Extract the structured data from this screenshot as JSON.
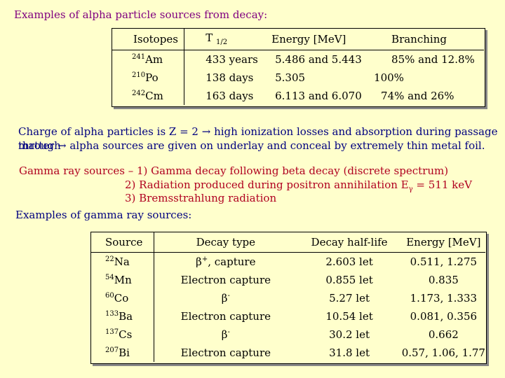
{
  "title": "Examples of alpha particle sources from decay:",
  "alpha_table": {
    "headers": [
      "Isotopes",
      "T",
      "1/2",
      "Energy [MeV]",
      "Branching"
    ],
    "rows": [
      {
        "mass": "241",
        "el": "Am",
        "t": "433 years",
        "e": "5.486 and 5.443",
        "b": "85% and 12.8%"
      },
      {
        "mass": "210",
        "el": "Po",
        "t": "138 days",
        "e": "5.305",
        "b": "100%"
      },
      {
        "mass": "242",
        "el": "Cm",
        "t": "163 days",
        "e": "6.113  and 6.070",
        "b": "74% and 26%"
      }
    ]
  },
  "charge_text_1": "Charge of alpha particles is Z = 2 → high ionization losses and absorption during passage through",
  "charge_text_2": "matter → alpha sources are given on  underlay and conceal by extremely thin metal foil.",
  "gamma_line1": "Gamma ray sources – 1) Gamma decay following beta decay (discrete spectrum)",
  "gamma_line2_a": "2) Radiation produced during positron annihilation E",
  "gamma_line2_sub": "γ",
  "gamma_line2_b": " = 511 keV",
  "gamma_line3": "3) Bremsstrahlung radiation",
  "gamma_examples": "Examples of gamma ray sources:",
  "gamma_table": {
    "headers": [
      "Source",
      "Decay type",
      "Decay half-life",
      "Energy [MeV]"
    ],
    "rows": [
      {
        "mass": "22",
        "el": "Na",
        "decay": "β",
        "decay_sup": "+",
        "decay_rest": ", capture",
        "hl": "2.603 let",
        "e": "0.511, 1.275"
      },
      {
        "mass": "54",
        "el": "Mn",
        "decay": "Electron capture",
        "decay_sup": "",
        "decay_rest": "",
        "hl": "0.855 let",
        "e": "0.835"
      },
      {
        "mass": "60",
        "el": "Co",
        "decay": "β",
        "decay_sup": "-",
        "decay_rest": "",
        "hl": "5.27 let",
        "e": "1.173, 1.333"
      },
      {
        "mass": "133",
        "el": "Ba",
        "decay": "Electron capture",
        "decay_sup": "",
        "decay_rest": "",
        "hl": "10.54 let",
        "e": "0.081, 0.356"
      },
      {
        "mass": "137",
        "el": "Cs",
        "decay": "β",
        "decay_sup": "-",
        "decay_rest": "",
        "hl": "30.2 let",
        "e": "0.662"
      },
      {
        "mass": "207",
        "el": "Bi",
        "decay": "Electron capture",
        "decay_sup": "",
        "decay_rest": "",
        "hl": "31.8 let",
        "e": "0.57, 1.06, 1.77"
      }
    ]
  }
}
